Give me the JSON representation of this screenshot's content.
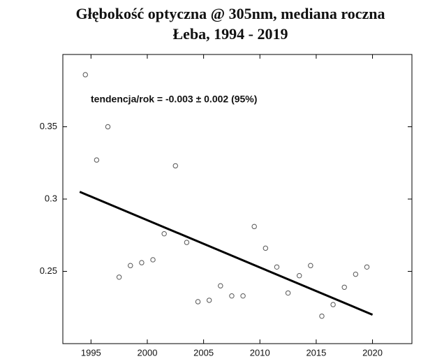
{
  "chart_data": {
    "type": "scatter",
    "title": "Głębokość optyczna @ 305nm, mediana roczna",
    "subtitle": "Łeba, 1994 - 2019",
    "annotation": "tendencja/rok = -0.003 ± 0.002 (95%)",
    "x": [
      1994.5,
      1995.5,
      1996.5,
      1997.5,
      1998.5,
      1999.5,
      2000.5,
      2001.5,
      2002.5,
      2003.5,
      2004.5,
      2005.5,
      2006.5,
      2007.5,
      2008.5,
      2009.5,
      2010.5,
      2011.5,
      2012.5,
      2013.5,
      2014.5,
      2015.5,
      2016.5,
      2017.5,
      2018.5,
      2019.5
    ],
    "values": [
      0.386,
      0.327,
      0.35,
      0.246,
      0.254,
      0.256,
      0.258,
      0.276,
      0.323,
      0.27,
      0.229,
      0.23,
      0.24,
      0.233,
      0.233,
      0.281,
      0.266,
      0.253,
      0.235,
      0.247,
      0.254,
      0.219,
      0.227,
      0.239,
      0.248,
      0.253
    ],
    "color": "#555555",
    "trend": {
      "x": [
        1994,
        2020
      ],
      "values": [
        0.305,
        0.22
      ],
      "color": "#000000"
    },
    "xlim": [
      1992.5,
      2023.5
    ],
    "ylim": [
      0.2,
      0.4
    ],
    "xticks": [
      1995,
      2000,
      2005,
      2010,
      2015,
      2020
    ],
    "yticks": [
      0.25,
      0.3,
      0.35
    ],
    "grid": false
  }
}
